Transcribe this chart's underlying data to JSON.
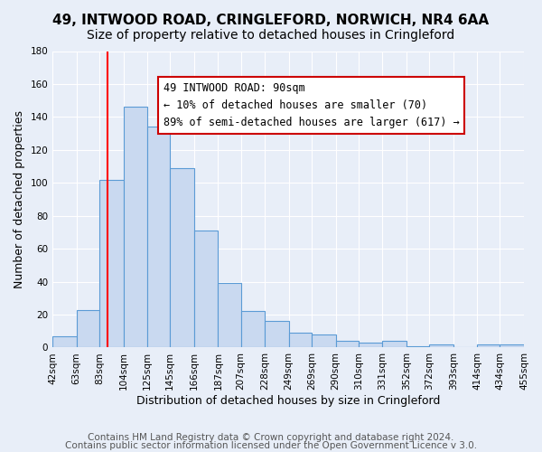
{
  "title": "49, INTWOOD ROAD, CRINGLEFORD, NORWICH, NR4 6AA",
  "subtitle": "Size of property relative to detached houses in Cringleford",
  "xlabel": "Distribution of detached houses by size in Cringleford",
  "ylabel": "Number of detached properties",
  "bar_edges": [
    42,
    63,
    83,
    104,
    125,
    145,
    166,
    187,
    207,
    228,
    249,
    269,
    290,
    310,
    331,
    352,
    372,
    393,
    414,
    434,
    455
  ],
  "bar_heights": [
    7,
    23,
    102,
    146,
    134,
    109,
    71,
    39,
    22,
    16,
    9,
    8,
    4,
    3,
    4,
    1,
    2,
    0,
    2,
    2
  ],
  "bar_color": "#c9d9f0",
  "bar_edge_color": "#5b9bd5",
  "red_line_x": 90,
  "ylim": [
    0,
    180
  ],
  "yticks": [
    0,
    20,
    40,
    60,
    80,
    100,
    120,
    140,
    160,
    180
  ],
  "xtick_labels": [
    "42sqm",
    "63sqm",
    "83sqm",
    "104sqm",
    "125sqm",
    "145sqm",
    "166sqm",
    "187sqm",
    "207sqm",
    "228sqm",
    "249sqm",
    "269sqm",
    "290sqm",
    "310sqm",
    "331sqm",
    "352sqm",
    "372sqm",
    "393sqm",
    "414sqm",
    "434sqm",
    "455sqm"
  ],
  "annotation_title": "49 INTWOOD ROAD: 90sqm",
  "annotation_line1": "← 10% of detached houses are smaller (70)",
  "annotation_line2": "89% of semi-detached houses are larger (617) →",
  "annotation_box_color": "#ffffff",
  "annotation_box_edge_color": "#cc0000",
  "footer_line1": "Contains HM Land Registry data © Crown copyright and database right 2024.",
  "footer_line2": "Contains public sector information licensed under the Open Government Licence v 3.0.",
  "background_color": "#e8eef8",
  "plot_background_color": "#e8eef8",
  "grid_color": "#ffffff",
  "title_fontsize": 11,
  "subtitle_fontsize": 10,
  "xlabel_fontsize": 9,
  "ylabel_fontsize": 9,
  "footer_fontsize": 7.5,
  "tick_fontsize": 7.5,
  "annot_title_fontsize": 9,
  "annot_line_fontsize": 8.5
}
